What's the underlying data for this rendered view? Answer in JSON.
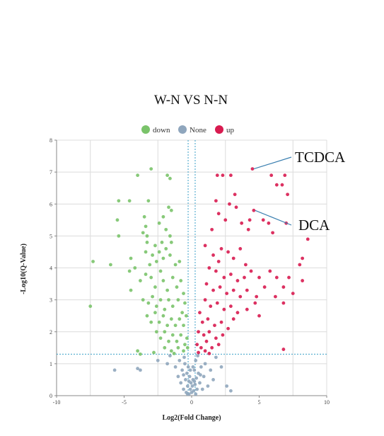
{
  "chart_data": {
    "type": "scatter",
    "title": "W-N  VS  N-N",
    "xlabel": "Log2(Fold Change)",
    "ylabel": "-Log10(Q-Value)",
    "xlim": [
      -10,
      10
    ],
    "ylim": [
      0,
      8
    ],
    "xticks": [
      -10,
      -5,
      0,
      5,
      10
    ],
    "yticks": [
      0,
      1,
      2,
      3,
      4,
      5,
      6,
      7,
      8
    ],
    "grid": true,
    "legend_position": "top-center",
    "thresholds": {
      "x": [
        -0.26,
        0.26
      ],
      "y": 1.3
    },
    "colors": {
      "down": "#7ac36a",
      "None": "#8fa6bd",
      "up": "#d81b50",
      "threshold": "#3aa0c8"
    },
    "series": [
      {
        "name": "down",
        "points": [
          [
            -4.0,
            6.9
          ],
          [
            -3.0,
            7.1
          ],
          [
            -1.8,
            6.9
          ],
          [
            -1.6,
            6.8
          ],
          [
            -5.4,
            6.1
          ],
          [
            -4.6,
            6.1
          ],
          [
            -3.2,
            6.1
          ],
          [
            -1.7,
            5.9
          ],
          [
            -1.5,
            5.8
          ],
          [
            -3.5,
            5.6
          ],
          [
            -3.4,
            5.3
          ],
          [
            -3.6,
            5.1
          ],
          [
            -2.1,
            5.6
          ],
          [
            -2.4,
            5.4
          ],
          [
            -5.5,
            5.5
          ],
          [
            -5.4,
            5.0
          ],
          [
            -3.3,
            5.0
          ],
          [
            -1.9,
            5.2
          ],
          [
            -1.6,
            5.0
          ],
          [
            -3.3,
            4.8
          ],
          [
            -2.7,
            4.7
          ],
          [
            -2.2,
            4.8
          ],
          [
            -1.5,
            4.8
          ],
          [
            -1.9,
            4.6
          ],
          [
            -7.3,
            4.2
          ],
          [
            -6.0,
            4.1
          ],
          [
            -4.5,
            4.3
          ],
          [
            -4.2,
            4.0
          ],
          [
            -3.4,
            4.5
          ],
          [
            -3.1,
            4.1
          ],
          [
            -2.9,
            4.4
          ],
          [
            -2.6,
            4.2
          ],
          [
            -2.4,
            4.5
          ],
          [
            -2.1,
            4.3
          ],
          [
            -1.6,
            4.4
          ],
          [
            -1.2,
            4.1
          ],
          [
            -0.9,
            4.2
          ],
          [
            -4.6,
            3.9
          ],
          [
            -4.5,
            3.3
          ],
          [
            -3.8,
            3.6
          ],
          [
            -3.4,
            3.8
          ],
          [
            -3.0,
            3.7
          ],
          [
            -2.7,
            3.4
          ],
          [
            -2.3,
            3.9
          ],
          [
            -2.1,
            3.6
          ],
          [
            -1.8,
            3.3
          ],
          [
            -1.4,
            3.7
          ],
          [
            -1.1,
            3.4
          ],
          [
            -0.8,
            3.6
          ],
          [
            -0.6,
            3.2
          ],
          [
            -3.6,
            3.0
          ],
          [
            -3.2,
            2.9
          ],
          [
            -2.9,
            3.1
          ],
          [
            -2.6,
            2.8
          ],
          [
            -2.3,
            3.0
          ],
          [
            -2.0,
            2.7
          ],
          [
            -1.7,
            3.0
          ],
          [
            -1.4,
            2.8
          ],
          [
            -1.0,
            3.0
          ],
          [
            -0.7,
            2.6
          ],
          [
            -0.5,
            2.9
          ],
          [
            -7.5,
            2.8
          ],
          [
            -3.3,
            2.5
          ],
          [
            -3.0,
            2.3
          ],
          [
            -2.7,
            2.6
          ],
          [
            -2.4,
            2.3
          ],
          [
            -2.1,
            2.5
          ],
          [
            -1.8,
            2.2
          ],
          [
            -1.5,
            2.4
          ],
          [
            -1.2,
            2.2
          ],
          [
            -0.9,
            2.4
          ],
          [
            -0.6,
            2.2
          ],
          [
            -0.4,
            2.5
          ],
          [
            -2.6,
            2.0
          ],
          [
            -2.3,
            1.8
          ],
          [
            -2.0,
            2.0
          ],
          [
            -1.7,
            1.7
          ],
          [
            -1.4,
            1.9
          ],
          [
            -1.1,
            1.7
          ],
          [
            -0.8,
            1.9
          ],
          [
            -0.5,
            1.6
          ],
          [
            -0.35,
            1.8
          ],
          [
            -2.0,
            1.5
          ],
          [
            -1.5,
            1.4
          ],
          [
            -1.0,
            1.5
          ],
          [
            -0.6,
            1.4
          ],
          [
            -0.3,
            1.5
          ],
          [
            -4.0,
            1.4
          ],
          [
            -3.8,
            1.3
          ],
          [
            -2.8,
            1.35
          ],
          [
            -1.3,
            1.32
          ]
        ]
      },
      {
        "name": "None",
        "points": [
          [
            -5.7,
            0.8
          ],
          [
            -4.0,
            0.85
          ],
          [
            -3.8,
            0.8
          ],
          [
            -2.5,
            1.1
          ],
          [
            -1.8,
            1.0
          ],
          [
            -1.6,
            1.25
          ],
          [
            -1.2,
            0.9
          ],
          [
            -1.0,
            0.6
          ],
          [
            -0.9,
            1.1
          ],
          [
            -0.8,
            0.4
          ],
          [
            -0.7,
            0.8
          ],
          [
            -0.6,
            0.2
          ],
          [
            -0.5,
            1.0
          ],
          [
            -0.45,
            0.5
          ],
          [
            -0.4,
            0.1
          ],
          [
            -0.35,
            0.7
          ],
          [
            -0.3,
            0.3
          ],
          [
            -0.25,
            0.9
          ],
          [
            -0.2,
            0.05
          ],
          [
            -0.15,
            0.6
          ],
          [
            -0.1,
            0.2
          ],
          [
            -0.05,
            0.4
          ],
          [
            0.0,
            0.1
          ],
          [
            0.05,
            0.3
          ],
          [
            0.1,
            0.5
          ],
          [
            0.15,
            0.15
          ],
          [
            0.2,
            0.8
          ],
          [
            0.25,
            0.35
          ],
          [
            0.3,
            1.1
          ],
          [
            0.35,
            0.55
          ],
          [
            0.4,
            0.2
          ],
          [
            0.5,
            0.7
          ],
          [
            0.6,
            0.4
          ],
          [
            0.7,
            0.9
          ],
          [
            0.8,
            0.2
          ],
          [
            0.9,
            0.6
          ],
          [
            1.0,
            1.0
          ],
          [
            1.2,
            0.3
          ],
          [
            1.4,
            0.8
          ],
          [
            1.6,
            0.5
          ],
          [
            1.8,
            1.2
          ],
          [
            2.2,
            0.9
          ],
          [
            2.6,
            0.3
          ],
          [
            2.9,
            0.15
          ],
          [
            -0.55,
            1.2
          ],
          [
            0.45,
            1.25
          ],
          [
            -0.1,
            0.8
          ],
          [
            0.1,
            0.9
          ],
          [
            -0.3,
            0.05
          ],
          [
            0.3,
            0.05
          ],
          [
            -0.2,
            0.45
          ],
          [
            0.2,
            0.45
          ],
          [
            -0.6,
            0.65
          ],
          [
            0.65,
            0.65
          ]
        ]
      },
      {
        "name": "up",
        "points": [
          [
            1.9,
            6.9
          ],
          [
            2.3,
            6.9
          ],
          [
            2.9,
            6.9
          ],
          [
            4.5,
            7.1
          ],
          [
            5.9,
            6.9
          ],
          [
            6.9,
            6.9
          ],
          [
            6.3,
            6.6
          ],
          [
            6.7,
            6.6
          ],
          [
            7.1,
            6.3
          ],
          [
            3.2,
            6.3
          ],
          [
            1.8,
            6.1
          ],
          [
            2.8,
            6.0
          ],
          [
            4.6,
            5.8
          ],
          [
            3.3,
            5.9
          ],
          [
            2.0,
            5.7
          ],
          [
            2.5,
            5.5
          ],
          [
            3.7,
            5.4
          ],
          [
            4.3,
            5.5
          ],
          [
            5.3,
            5.5
          ],
          [
            5.7,
            5.4
          ],
          [
            4.2,
            5.2
          ],
          [
            6.0,
            5.1
          ],
          [
            7.0,
            5.4
          ],
          [
            8.6,
            4.9
          ],
          [
            1.5,
            5.2
          ],
          [
            1.0,
            4.7
          ],
          [
            1.6,
            4.4
          ],
          [
            2.2,
            4.6
          ],
          [
            2.7,
            4.5
          ],
          [
            3.1,
            4.3
          ],
          [
            3.6,
            4.6
          ],
          [
            4.0,
            4.1
          ],
          [
            2.0,
            4.2
          ],
          [
            8.2,
            4.3
          ],
          [
            8.0,
            4.1
          ],
          [
            1.3,
            4.0
          ],
          [
            1.8,
            3.9
          ],
          [
            2.4,
            3.7
          ],
          [
            2.9,
            3.8
          ],
          [
            3.4,
            3.6
          ],
          [
            3.9,
            3.7
          ],
          [
            4.4,
            3.9
          ],
          [
            5.0,
            3.7
          ],
          [
            5.8,
            3.9
          ],
          [
            6.3,
            3.7
          ],
          [
            7.2,
            3.7
          ],
          [
            8.2,
            3.6
          ],
          [
            6.8,
            3.4
          ],
          [
            1.1,
            3.5
          ],
          [
            1.6,
            3.3
          ],
          [
            2.1,
            3.4
          ],
          [
            2.6,
            3.2
          ],
          [
            3.1,
            3.3
          ],
          [
            3.6,
            3.1
          ],
          [
            4.1,
            3.3
          ],
          [
            4.8,
            3.1
          ],
          [
            5.4,
            3.4
          ],
          [
            6.2,
            3.1
          ],
          [
            6.8,
            2.9
          ],
          [
            7.5,
            3.2
          ],
          [
            1.0,
            3.0
          ],
          [
            1.4,
            2.8
          ],
          [
            1.9,
            2.9
          ],
          [
            2.4,
            2.7
          ],
          [
            2.9,
            2.8
          ],
          [
            3.4,
            2.6
          ],
          [
            4.1,
            2.7
          ],
          [
            4.7,
            2.9
          ],
          [
            5.0,
            2.5
          ],
          [
            0.6,
            2.6
          ],
          [
            0.8,
            2.3
          ],
          [
            1.2,
            2.4
          ],
          [
            1.7,
            2.2
          ],
          [
            2.2,
            2.3
          ],
          [
            2.7,
            2.1
          ],
          [
            3.1,
            2.4
          ],
          [
            0.5,
            2.0
          ],
          [
            0.9,
            1.9
          ],
          [
            1.3,
            2.0
          ],
          [
            1.8,
            1.8
          ],
          [
            2.3,
            1.9
          ],
          [
            0.4,
            1.6
          ],
          [
            0.7,
            1.5
          ],
          [
            1.1,
            1.7
          ],
          [
            1.5,
            1.5
          ],
          [
            2.0,
            1.6
          ],
          [
            0.5,
            1.35
          ],
          [
            1.0,
            1.4
          ],
          [
            6.8,
            1.45
          ],
          [
            1.3,
            1.32
          ]
        ]
      }
    ]
  },
  "legend": {
    "items": [
      {
        "label": "down",
        "color": "#7ac36a"
      },
      {
        "label": "None",
        "color": "#8fa6bd"
      },
      {
        "label": "up",
        "color": "#d81b50"
      }
    ]
  },
  "annotations": [
    {
      "label": "TCDCA",
      "x": 4.5,
      "y": 7.1
    },
    {
      "label": "DCA",
      "x": 4.6,
      "y": 5.8
    }
  ]
}
